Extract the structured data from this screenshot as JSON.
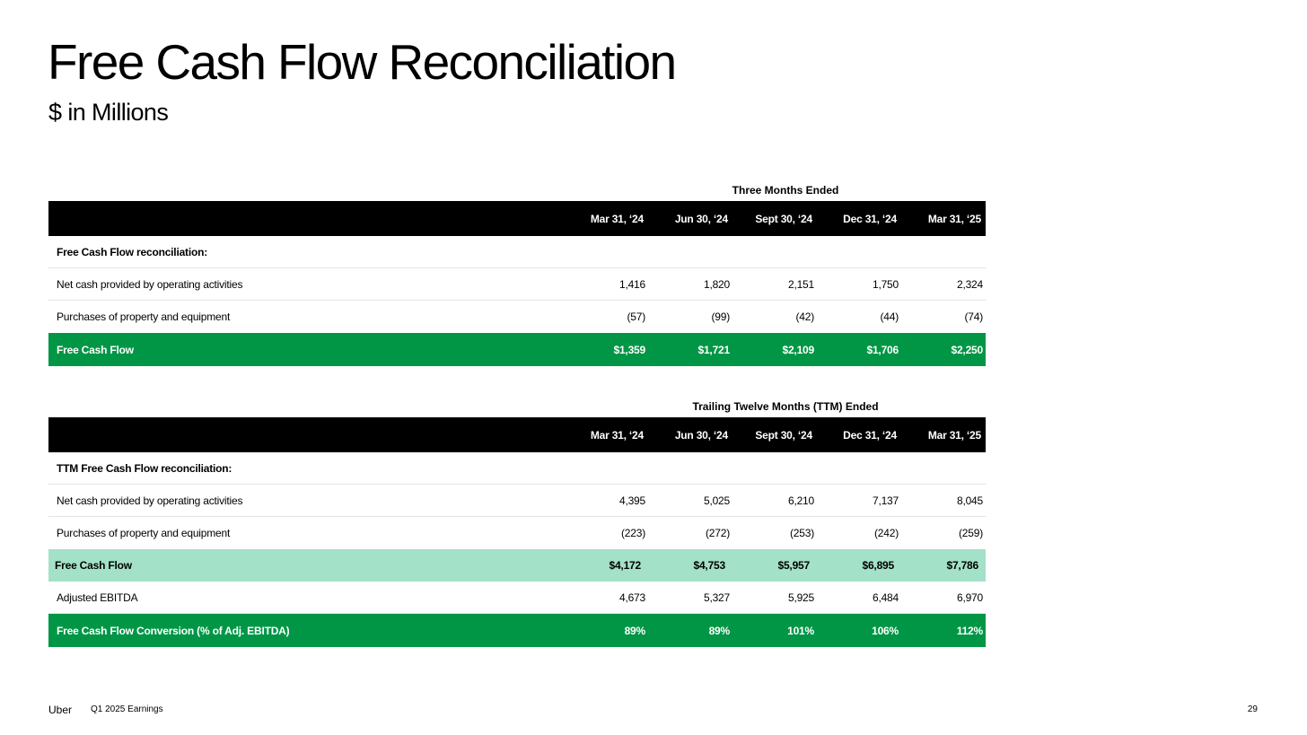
{
  "slide": {
    "title": "Free Cash Flow Reconciliation",
    "subtitle": "$ in Millions"
  },
  "quarterly": {
    "caption": "Three Months Ended",
    "columns": [
      "Mar 31, ‘24",
      "Jun 30, ‘24",
      "Sept 30, ‘24",
      "Dec 31, ‘24",
      "Mar 31, ‘25"
    ],
    "section_label": "Free Cash Flow reconciliation:",
    "rows": [
      {
        "label": "Net cash provided by operating activities",
        "values": [
          "1,416",
          "1,820",
          "2,151",
          "1,750",
          "2,324"
        ]
      },
      {
        "label": "Purchases of property and equipment",
        "values": [
          "(57)",
          "(99)",
          "(42)",
          "(44)",
          "(74)"
        ]
      },
      {
        "label": "Free Cash Flow",
        "values": [
          "$1,359",
          "$1,721",
          "$2,109",
          "$1,706",
          "$2,250"
        ]
      }
    ]
  },
  "ttm": {
    "caption": "Trailing Twelve Months (TTM) Ended",
    "columns": [
      "Mar 31, ‘24",
      "Jun 30, ‘24",
      "Sept 30, ‘24",
      "Dec 31, ‘24",
      "Mar 31, ‘25"
    ],
    "section_label": "TTM Free Cash Flow reconciliation:",
    "rows": [
      {
        "label": "Net cash provided by operating activities",
        "values": [
          "4,395",
          "5,025",
          "6,210",
          "7,137",
          "8,045"
        ]
      },
      {
        "label": "Purchases of property and equipment",
        "values": [
          "(223)",
          "(272)",
          "(253)",
          "(242)",
          "(259)"
        ]
      },
      {
        "label": "Free Cash Flow",
        "values": [
          "$4,172",
          "$4,753",
          "$5,957",
          "$6,895",
          "$7,786"
        ]
      },
      {
        "label": "Adjusted EBITDA",
        "values": [
          "4,673",
          "5,327",
          "5,925",
          "6,484",
          "6,970"
        ]
      },
      {
        "label": "Free Cash Flow Conversion (% of Adj. EBITDA)",
        "values": [
          "89%",
          "89%",
          "101%",
          "106%",
          "112%"
        ]
      }
    ]
  },
  "colors": {
    "header_bg": "#000000",
    "fcf_green": "#009645",
    "fcf_light_green": "#a3e1c8"
  },
  "footer": {
    "brand": "Uber",
    "document": "Q1 2025 Earnings",
    "page": "29"
  }
}
